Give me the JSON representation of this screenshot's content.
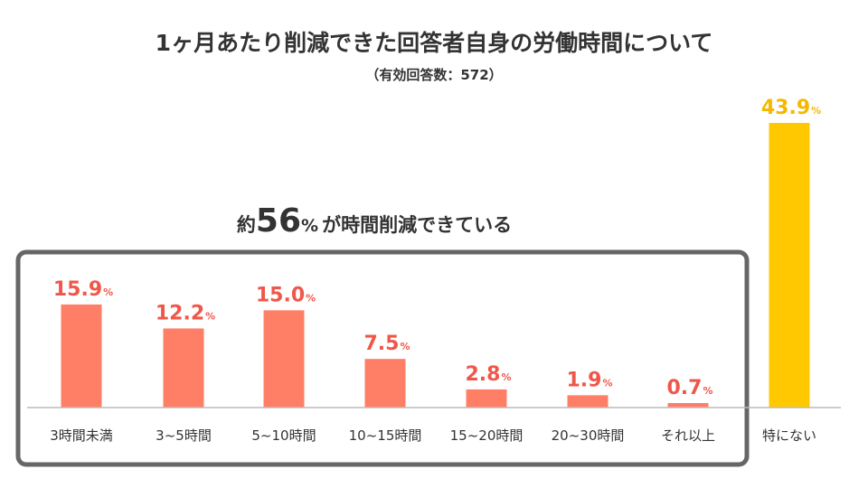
{
  "colors": {
    "reduced_bar": "#FF7F66",
    "not_reduced_bar": "#FFC800",
    "reduced_label": "#F0574A",
    "not_reduced_label": "#F5B800",
    "group_box": "#666666",
    "baseline": "#BBBBBB",
    "text": "#333333"
  },
  "chart_data": {
    "type": "bar",
    "title": "1ヶ月あたり削減できた回答者自身の労働時間について",
    "subtitle": "（有効回答数：572）",
    "categories": [
      "3時間未満",
      "3~5時間",
      "5~10時間",
      "10~15時間",
      "15~20時間",
      "20~30時間",
      "それ以上",
      "特にない"
    ],
    "values": [
      15.9,
      12.2,
      15.0,
      7.5,
      2.8,
      1.9,
      0.7,
      43.9
    ],
    "data_labels": [
      "15.9",
      "12.2",
      "15.0",
      "7.5",
      "2.8",
      "1.9",
      "0.7",
      "43.9"
    ],
    "unit": "%",
    "xlabel": "",
    "ylabel": "",
    "ylim": [
      0,
      43.9
    ],
    "grid": false,
    "highlight": {
      "group": "reduced",
      "categories": [
        "3時間未満",
        "3~5時間",
        "5~10時間",
        "10~15時間",
        "15~20時間",
        "20~30時間",
        "それ以上"
      ],
      "prefix": "約",
      "value": "56",
      "unit": "%",
      "suffix": "が時間削減できている"
    },
    "bar_colors": [
      "reduced",
      "reduced",
      "reduced",
      "reduced",
      "reduced",
      "reduced",
      "reduced",
      "not_reduced"
    ]
  }
}
